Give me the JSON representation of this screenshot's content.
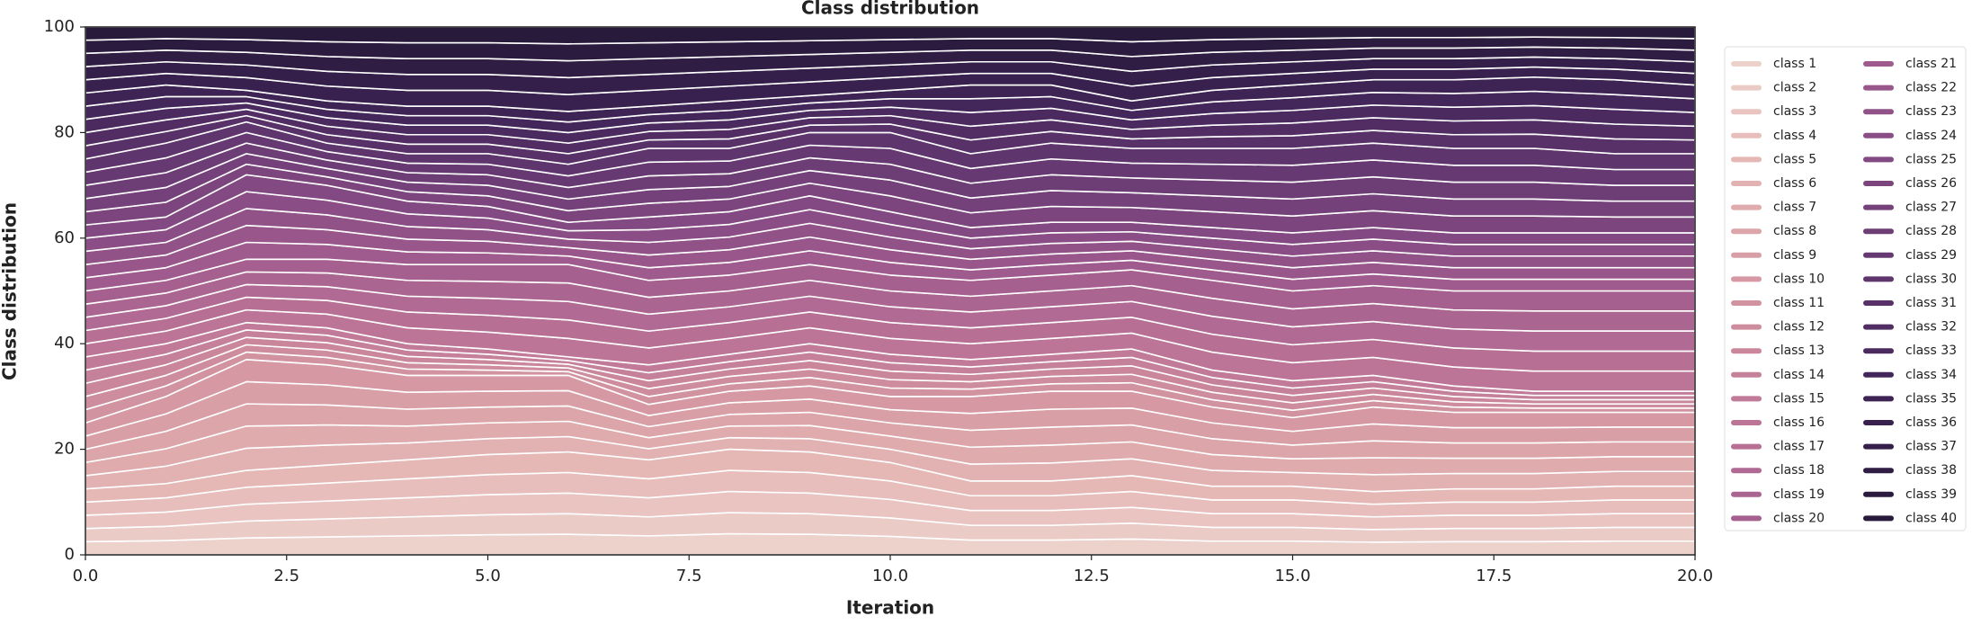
{
  "chart_data": {
    "type": "stackedarea",
    "title": "Class distribution",
    "xlabel": "Iteration",
    "ylabel": "Class distribution",
    "x": [
      0,
      1,
      2,
      3,
      4,
      5,
      6,
      7,
      8,
      9,
      10,
      11,
      12,
      13,
      14,
      15,
      16,
      17,
      18,
      19,
      20
    ],
    "xlim": [
      0,
      20
    ],
    "ylim": [
      0,
      100
    ],
    "xticks": [
      {
        "value": 0,
        "label": "0.0"
      },
      2.5,
      {
        "value": 5,
        "label": "5.0"
      },
      7.5,
      {
        "value": 10,
        "label": "10.0"
      },
      12.5,
      {
        "value": 15,
        "label": "15.0"
      },
      17.5,
      {
        "value": 20,
        "label": "20.0"
      }
    ],
    "yticks": [
      0,
      20,
      40,
      60,
      80,
      100
    ],
    "grid": false,
    "legend": "right",
    "series": [
      {
        "name": "class 1",
        "color": "#edd1cb",
        "values": [
          2.5,
          2.7,
          3.2,
          3.4,
          3.6,
          3.8,
          3.9,
          3.6,
          4,
          3.9,
          3.5,
          2.8,
          2.8,
          3,
          2.6,
          2.6,
          2.4,
          2.5,
          2.5,
          2.6,
          2.6
        ]
      },
      {
        "name": "class 2",
        "color": "#ebcbc5",
        "values": [
          2.5,
          2.7,
          3.2,
          3.4,
          3.6,
          3.8,
          3.9,
          3.6,
          4,
          3.9,
          3.5,
          2.8,
          2.8,
          3,
          2.6,
          2.6,
          2.4,
          2.5,
          2.5,
          2.6,
          2.6
        ]
      },
      {
        "name": "class 3",
        "color": "#e9c4c0",
        "values": [
          2.5,
          2.7,
          3.2,
          3.4,
          3.6,
          3.8,
          3.9,
          3.6,
          4,
          3.9,
          3.5,
          2.8,
          2.8,
          3,
          2.6,
          2.6,
          2.4,
          2.5,
          2.5,
          2.6,
          2.6
        ]
      },
      {
        "name": "class 4",
        "color": "#e7bebb",
        "values": [
          2.5,
          2.7,
          3.2,
          3.4,
          3.6,
          3.8,
          3.9,
          3.6,
          4,
          3.9,
          3.5,
          2.8,
          2.8,
          3,
          2.6,
          2.6,
          2.4,
          2.5,
          2.5,
          2.6,
          2.6
        ]
      },
      {
        "name": "class 5",
        "color": "#e5b8b6",
        "values": [
          2.5,
          2.7,
          3.2,
          3.4,
          3.6,
          3.8,
          3.9,
          3.6,
          4,
          3.9,
          3.5,
          2.8,
          2.8,
          3,
          2.6,
          2.6,
          2.4,
          2.5,
          2.5,
          2.6,
          2.6
        ]
      },
      {
        "name": "class 6",
        "color": "#e2b1b1",
        "values": [
          2.5,
          3.3,
          4.2,
          3.8,
          3.2,
          3,
          2.9,
          2.1,
          2.2,
          2.5,
          2.5,
          3.2,
          3.4,
          3.2,
          3,
          2.6,
          3.2,
          2.9,
          2.9,
          2.8,
          2.8
        ]
      },
      {
        "name": "class 7",
        "color": "#dfabac",
        "values": [
          2.5,
          3.3,
          4.2,
          3.8,
          3.2,
          3,
          2.9,
          2.1,
          2.2,
          2.5,
          2.5,
          3.2,
          3.4,
          3.2,
          3,
          2.6,
          3.2,
          2.9,
          2.9,
          2.8,
          2.8
        ]
      },
      {
        "name": "class 8",
        "color": "#dca5a9",
        "values": [
          2.5,
          3.3,
          4.2,
          3.8,
          3.2,
          3,
          2.9,
          2.1,
          2.2,
          2.5,
          2.5,
          3.2,
          3.4,
          3.2,
          3,
          2.6,
          3.2,
          2.9,
          2.9,
          2.8,
          2.8
        ]
      },
      {
        "name": "class 9",
        "color": "#d99fa6",
        "values": [
          2.5,
          3.3,
          4.2,
          3.8,
          3.2,
          3,
          2.9,
          2.1,
          2.2,
          2.5,
          2.5,
          3.2,
          3.4,
          3.2,
          3,
          2.6,
          3.2,
          2.9,
          2.9,
          2.8,
          2.8
        ]
      },
      {
        "name": "class 10",
        "color": "#d699a3",
        "values": [
          2.5,
          3.3,
          4.2,
          3.8,
          3.2,
          3,
          2.9,
          2.1,
          2.2,
          2.5,
          2.5,
          3.2,
          3.4,
          3.2,
          3,
          2.6,
          3.2,
          2.9,
          2.9,
          2.8,
          2.8
        ]
      },
      {
        "name": "class 11",
        "color": "#d293a0",
        "values": [
          2.5,
          2,
          1.4,
          1.4,
          1.2,
          1,
          0.7,
          1.5,
          1.4,
          1.6,
          1.6,
          1.4,
          1.4,
          1.6,
          1.4,
          1.4,
          1.2,
          1,
          0.8,
          0.8,
          0.8
        ]
      },
      {
        "name": "class 12",
        "color": "#ce8d9e",
        "values": [
          2.5,
          2,
          1.4,
          1.4,
          1.2,
          1,
          0.7,
          1.5,
          1.4,
          1.6,
          1.6,
          1.4,
          1.4,
          1.6,
          1.4,
          1.4,
          1.2,
          1,
          0.8,
          0.8,
          0.8
        ]
      },
      {
        "name": "class 13",
        "color": "#ca879c",
        "values": [
          2.5,
          2,
          1.4,
          1.4,
          1.2,
          1,
          0.7,
          1.5,
          1.4,
          1.6,
          1.6,
          1.4,
          1.4,
          1.6,
          1.4,
          1.4,
          1.2,
          1,
          0.8,
          0.8,
          0.8
        ]
      },
      {
        "name": "class 14",
        "color": "#c6819a",
        "values": [
          2.5,
          2,
          1.4,
          1.4,
          1.2,
          1,
          0.7,
          1.5,
          1.4,
          1.6,
          1.6,
          1.4,
          1.4,
          1.6,
          1.4,
          1.4,
          1.2,
          1,
          0.8,
          0.8,
          0.8
        ]
      },
      {
        "name": "class 15",
        "color": "#c17b98",
        "values": [
          2.5,
          2,
          1.4,
          1.4,
          1.2,
          1,
          0.7,
          1.5,
          1.4,
          1.6,
          1.6,
          1.4,
          1.4,
          1.6,
          1.4,
          1.4,
          1.2,
          1,
          0.8,
          0.8,
          0.8
        ]
      },
      {
        "name": "class 16",
        "color": "#bc7596",
        "values": [
          2.5,
          2.4,
          2.4,
          2.6,
          3,
          3.2,
          3.5,
          3.2,
          3,
          3,
          3,
          3,
          3,
          3,
          3.4,
          3.4,
          3.4,
          3.6,
          3.8,
          3.8,
          3.8
        ]
      },
      {
        "name": "class 17",
        "color": "#b77094",
        "values": [
          2.5,
          2.4,
          2.4,
          2.6,
          3,
          3.2,
          3.5,
          3.2,
          3,
          3,
          3,
          3,
          3,
          3,
          3.4,
          3.4,
          3.4,
          3.6,
          3.8,
          3.8,
          3.8
        ]
      },
      {
        "name": "class 18",
        "color": "#b16a93",
        "values": [
          2.5,
          2.4,
          2.4,
          2.6,
          3,
          3.2,
          3.5,
          3.2,
          3,
          3,
          3,
          3,
          3,
          3,
          3.4,
          3.4,
          3.4,
          3.6,
          3.8,
          3.8,
          3.8
        ]
      },
      {
        "name": "class 19",
        "color": "#ab6591",
        "values": [
          2.5,
          2.4,
          2.4,
          2.6,
          3,
          3.2,
          3.5,
          3.2,
          3,
          3,
          3,
          3,
          3,
          3,
          3.4,
          3.4,
          3.4,
          3.6,
          3.8,
          3.8,
          3.8
        ]
      },
      {
        "name": "class 20",
        "color": "#a5608f",
        "values": [
          2.5,
          2.4,
          2.4,
          2.6,
          3,
          3.2,
          3.5,
          3.2,
          3,
          3,
          3,
          3,
          3,
          3,
          3.4,
          3.4,
          3.4,
          3.6,
          3.8,
          3.8,
          3.8
        ]
      },
      {
        "name": "class 21",
        "color": "#9f5b8d",
        "values": [
          2.5,
          2.4,
          3.2,
          2.8,
          2.4,
          2.2,
          1.6,
          2.4,
          2.4,
          2.6,
          2.4,
          2,
          2,
          1.8,
          2,
          2.2,
          2.2,
          2.2,
          2.2,
          2.2,
          2.2
        ]
      },
      {
        "name": "class 22",
        "color": "#98568b",
        "values": [
          2.5,
          2.4,
          3.2,
          2.8,
          2.4,
          2.2,
          1.6,
          2.4,
          2.4,
          2.6,
          2.4,
          2,
          2,
          1.8,
          2,
          2.2,
          2.2,
          2.2,
          2.2,
          2.2,
          2.2
        ]
      },
      {
        "name": "class 23",
        "color": "#915288",
        "values": [
          2.5,
          2.4,
          3.2,
          2.8,
          2.4,
          2.2,
          1.6,
          2.4,
          2.4,
          2.6,
          2.4,
          2,
          2,
          1.8,
          2,
          2.2,
          2.2,
          2.2,
          2.2,
          2.2,
          2.2
        ]
      },
      {
        "name": "class 24",
        "color": "#8a4d85",
        "values": [
          2.5,
          2.4,
          3.2,
          2.8,
          2.4,
          2.2,
          1.6,
          2.4,
          2.4,
          2.6,
          2.4,
          2,
          2,
          1.8,
          2,
          2.2,
          2.2,
          2.2,
          2.2,
          2.2,
          2.2
        ]
      },
      {
        "name": "class 25",
        "color": "#834982",
        "values": [
          2.5,
          2.4,
          3.2,
          2.8,
          2.4,
          2.2,
          1.6,
          2.4,
          2.4,
          2.6,
          2.4,
          2,
          2,
          1.8,
          2,
          2.2,
          2.2,
          2.2,
          2.2,
          2.2,
          2.2
        ]
      },
      {
        "name": "class 26",
        "color": "#7c457e",
        "values": [
          2.5,
          2.8,
          2,
          1.6,
          1.8,
          2,
          2.2,
          2.6,
          2.4,
          2.4,
          3,
          2.8,
          3,
          2.8,
          3,
          3.2,
          3.2,
          3.2,
          3.2,
          3,
          3
        ]
      },
      {
        "name": "class 27",
        "color": "#74417a",
        "values": [
          2.5,
          2.8,
          2,
          1.6,
          1.8,
          2,
          2.2,
          2.6,
          2.4,
          2.4,
          3,
          2.8,
          3,
          2.8,
          3,
          3.2,
          3.2,
          3.2,
          3.2,
          3,
          3
        ]
      },
      {
        "name": "class 28",
        "color": "#6d3d76",
        "values": [
          2.5,
          2.8,
          2,
          1.6,
          1.8,
          2,
          2.2,
          2.6,
          2.4,
          2.4,
          3,
          2.8,
          3,
          2.8,
          3,
          3.2,
          3.2,
          3.2,
          3.2,
          3,
          3
        ]
      },
      {
        "name": "class 29",
        "color": "#663972",
        "values": [
          2.5,
          2.8,
          2,
          1.6,
          1.8,
          2,
          2.2,
          2.6,
          2.4,
          2.4,
          3,
          2.8,
          3,
          2.8,
          3,
          3.2,
          3.2,
          3.2,
          3.2,
          3,
          3
        ]
      },
      {
        "name": "class 30",
        "color": "#5f356e",
        "values": [
          2.5,
          2.8,
          2,
          1.6,
          1.8,
          2,
          2.2,
          2.6,
          2.4,
          2.4,
          3,
          2.8,
          3,
          2.8,
          3,
          3.2,
          3.2,
          3.2,
          3.2,
          3,
          3
        ]
      },
      {
        "name": "class 31",
        "color": "#583169",
        "values": [
          2.5,
          2.2,
          1.2,
          1.6,
          1.8,
          1.8,
          2,
          1.6,
          1.8,
          1.4,
          1.6,
          2.6,
          2.2,
          1.8,
          2.2,
          2.4,
          2.4,
          2.6,
          2.7,
          2.8,
          2.6
        ]
      },
      {
        "name": "class 32",
        "color": "#512d64",
        "values": [
          2.5,
          2.2,
          1.2,
          1.6,
          1.8,
          1.8,
          2,
          1.6,
          1.8,
          1.4,
          1.6,
          2.6,
          2.2,
          1.8,
          2.2,
          2.4,
          2.4,
          2.6,
          2.7,
          2.8,
          2.6
        ]
      },
      {
        "name": "class 33",
        "color": "#4a2a5f",
        "values": [
          2.5,
          2.2,
          1.2,
          1.6,
          1.8,
          1.8,
          2,
          1.6,
          1.8,
          1.4,
          1.6,
          2.6,
          2.2,
          1.8,
          2.2,
          2.4,
          2.4,
          2.6,
          2.7,
          2.8,
          2.6
        ]
      },
      {
        "name": "class 34",
        "color": "#44275a",
        "values": [
          2.5,
          2.2,
          1.2,
          1.6,
          1.8,
          1.8,
          2,
          1.6,
          1.8,
          1.4,
          1.6,
          2.6,
          2.2,
          1.8,
          2.2,
          2.4,
          2.4,
          2.6,
          2.7,
          2.8,
          2.6
        ]
      },
      {
        "name": "class 35",
        "color": "#3e2454",
        "values": [
          2.5,
          2.2,
          1.2,
          1.6,
          1.8,
          1.8,
          2,
          1.6,
          1.8,
          1.4,
          1.6,
          2.6,
          2.2,
          1.8,
          2.2,
          2.4,
          2.4,
          2.6,
          2.7,
          2.8,
          2.6
        ]
      },
      {
        "name": "class 36",
        "color": "#38214e",
        "values": [
          2.5,
          2.2,
          2.4,
          2.8,
          3,
          3,
          3.2,
          3,
          2.8,
          2.6,
          2.4,
          2.2,
          2.2,
          2.8,
          2.4,
          2.2,
          2,
          2,
          1.9,
          2,
          2.2
        ]
      },
      {
        "name": "class 37",
        "color": "#331f49",
        "values": [
          2.5,
          2.2,
          2.4,
          2.8,
          3,
          3,
          3.2,
          3,
          2.8,
          2.6,
          2.4,
          2.2,
          2.2,
          2.8,
          2.4,
          2.2,
          2,
          2,
          1.9,
          2,
          2.2
        ]
      },
      {
        "name": "class 38",
        "color": "#2f1d44",
        "values": [
          2.5,
          2.2,
          2.4,
          2.8,
          3,
          3,
          3.2,
          3,
          2.8,
          2.6,
          2.4,
          2.2,
          2.2,
          2.8,
          2.4,
          2.2,
          2,
          2,
          1.9,
          2,
          2.2
        ]
      },
      {
        "name": "class 39",
        "color": "#2b1b3f",
        "values": [
          2.5,
          2.2,
          2.4,
          2.8,
          3,
          3,
          3.2,
          3,
          2.8,
          2.6,
          2.4,
          2.2,
          2.2,
          2.8,
          2.4,
          2.2,
          2,
          2,
          1.9,
          2,
          2.2
        ]
      },
      {
        "name": "class 40",
        "color": "#281a3a",
        "values": [
          2.5,
          2.2,
          2.4,
          2.8,
          3,
          3,
          3.2,
          3,
          2.8,
          2.6,
          2.4,
          2.2,
          2.2,
          2.8,
          2.4,
          2.2,
          2,
          2,
          1.9,
          2,
          2.2
        ]
      }
    ]
  }
}
